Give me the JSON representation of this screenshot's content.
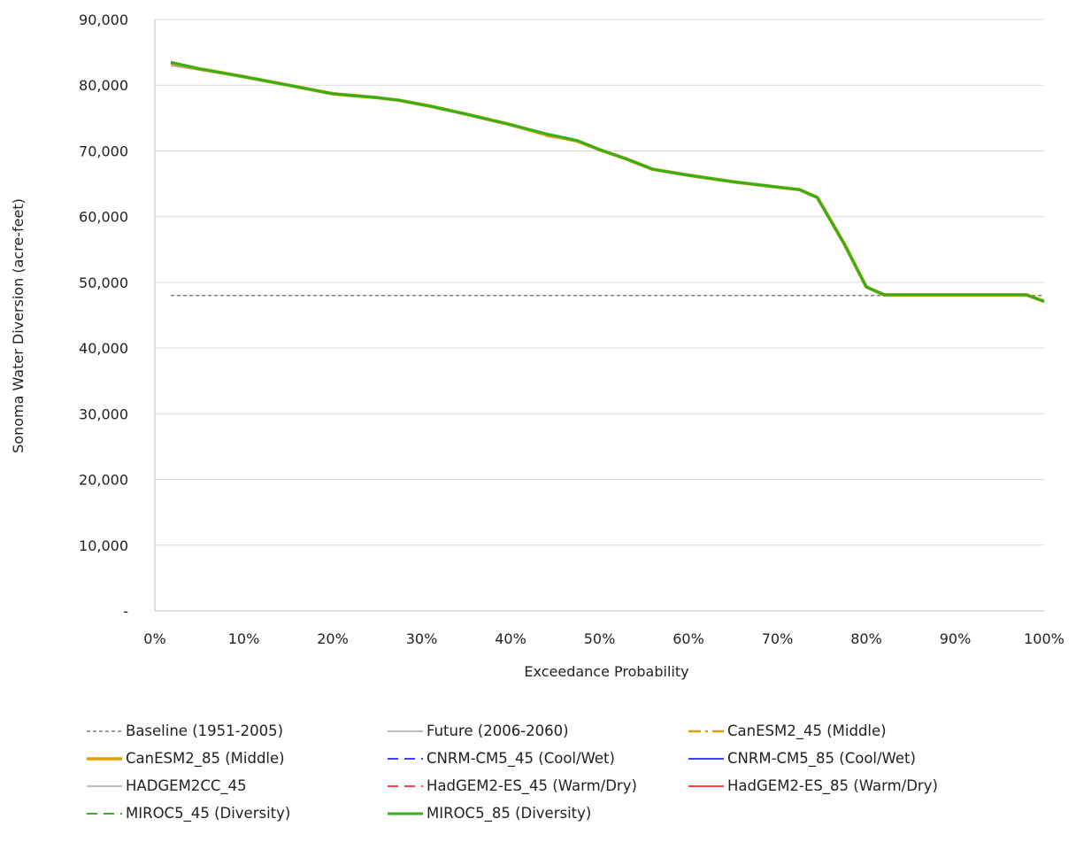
{
  "chart_data": {
    "type": "line",
    "title": "",
    "xlabel": "Exceedance  Probability",
    "ylabel": "Sonoma Water Diversion  (acre-feet)",
    "xlim": [
      0,
      100
    ],
    "ylim": [
      0,
      90000
    ],
    "x_ticks": [
      0,
      10,
      20,
      30,
      40,
      50,
      60,
      70,
      80,
      90,
      100
    ],
    "x_tick_labels": [
      "0%",
      "10%",
      "20%",
      "30%",
      "40%",
      "50%",
      "60%",
      "70%",
      "80%",
      "90%",
      "100%"
    ],
    "y_ticks": [
      0,
      10000,
      20000,
      30000,
      40000,
      50000,
      60000,
      70000,
      80000,
      90000
    ],
    "y_tick_labels": [
      "-",
      "10,000",
      "20,000",
      "30,000",
      "40,000",
      "50,000",
      "60,000",
      "70,000",
      "80,000",
      "90,000"
    ],
    "grid": "horizontal",
    "legend_position": "bottom",
    "x": [
      1.8,
      5,
      10,
      15,
      20,
      25,
      27.5,
      31,
      35,
      40,
      44,
      47.5,
      50,
      53,
      56,
      60,
      65,
      70,
      72.5,
      74.5,
      77.5,
      80,
      82,
      85,
      90,
      95,
      98,
      100
    ],
    "series": [
      {
        "name": "Baseline (1951-2005)",
        "color": "#808080",
        "style": "dashed-small",
        "width": 1.5,
        "values": [
          48000,
          48000,
          48000,
          48000,
          48000,
          48000,
          48000,
          48000,
          48000,
          48000,
          48000,
          48000,
          48000,
          48000,
          48000,
          48000,
          48000,
          48000,
          48000,
          48000,
          48000,
          48000,
          48000,
          48000,
          48000,
          48000,
          48000,
          48000
        ]
      },
      {
        "name": "Future (2006-2060)",
        "color": "#a6a6a6",
        "style": "solid",
        "width": 1.5,
        "values": [
          83000,
          82300,
          81200,
          80000,
          78700,
          78000,
          77700,
          76800,
          75600,
          74000,
          72600,
          71600,
          70200,
          68800,
          67200,
          66300,
          65300,
          64500,
          64100,
          62900,
          55900,
          49300,
          48100,
          48100,
          48100,
          48100,
          48100,
          47100
        ]
      },
      {
        "name": "CanESM2_45 (Middle)",
        "color": "#e0a000",
        "style": "dash-dot",
        "width": 2.5,
        "values": [
          83300,
          82400,
          81200,
          80000,
          78800,
          78100,
          77700,
          76900,
          75600,
          74000,
          72300,
          71500,
          70200,
          68800,
          67200,
          66300,
          65300,
          64500,
          64100,
          62900,
          55900,
          49300,
          48100,
          48100,
          48100,
          48100,
          48100,
          47100
        ]
      },
      {
        "name": "CanESM2_85 (Middle)",
        "color": "#e0a000",
        "style": "solid",
        "width": 4,
        "values": [
          83400,
          82500,
          81300,
          80000,
          78700,
          78100,
          77700,
          76800,
          75600,
          74000,
          72500,
          71500,
          70200,
          68800,
          67200,
          66300,
          65300,
          64500,
          64100,
          62900,
          55900,
          49300,
          48100,
          48100,
          48100,
          48100,
          48100,
          47100
        ]
      },
      {
        "name": "CNRM-CM5_45 (Cool/Wet)",
        "color": "#0000ff",
        "style": "dashed",
        "width": 1.5,
        "values": [
          83400,
          82500,
          81300,
          80000,
          78700,
          78100,
          77700,
          76800,
          75600,
          74000,
          72600,
          71600,
          70200,
          68800,
          67200,
          66300,
          65300,
          64500,
          64100,
          62900,
          55900,
          49300,
          48100,
          48100,
          48100,
          48100,
          48100,
          47100
        ]
      },
      {
        "name": "CNRM-CM5_85 (Cool/Wet)",
        "color": "#0000ff",
        "style": "solid",
        "width": 1.5,
        "values": [
          83400,
          82500,
          81300,
          80000,
          78700,
          78100,
          77700,
          76800,
          75600,
          74000,
          72600,
          71600,
          70200,
          68800,
          67200,
          66300,
          65300,
          64500,
          64100,
          62900,
          55900,
          49300,
          48100,
          48100,
          48100,
          48100,
          48100,
          47100
        ]
      },
      {
        "name": "HADGEM2CC_45",
        "color": "#a6a6a6",
        "style": "solid",
        "width": 1.5,
        "values": [
          83400,
          82500,
          81300,
          80000,
          78700,
          78100,
          77700,
          76800,
          75600,
          74000,
          72600,
          71600,
          70200,
          68800,
          67200,
          66300,
          65300,
          64500,
          64100,
          62900,
          55900,
          49300,
          48100,
          48100,
          48100,
          48100,
          48100,
          47100
        ]
      },
      {
        "name": "HadGEM2-ES_45 (Warm/Dry)",
        "color": "#ff0000",
        "style": "dashed",
        "width": 1.5,
        "values": [
          83400,
          82500,
          81300,
          80000,
          78700,
          78100,
          77700,
          76800,
          75600,
          74000,
          72600,
          71600,
          70200,
          68800,
          67200,
          66300,
          65300,
          64500,
          64100,
          62900,
          55900,
          49300,
          48100,
          48100,
          48100,
          48100,
          48100,
          47100
        ]
      },
      {
        "name": "HadGEM2-ES_85 (Warm/Dry)",
        "color": "#ff0000",
        "style": "solid",
        "width": 1.5,
        "values": [
          83400,
          82500,
          81300,
          80000,
          78700,
          78100,
          77700,
          76800,
          75600,
          74000,
          72600,
          71600,
          70200,
          68800,
          67200,
          66300,
          65300,
          64500,
          64100,
          62900,
          55900,
          49300,
          48100,
          48100,
          48100,
          48100,
          48100,
          47100
        ]
      },
      {
        "name": "MIROC5_45 (Diversity)",
        "color": "#33b01c",
        "style": "dashed",
        "width": 2,
        "values": [
          83400,
          82500,
          81300,
          80000,
          78700,
          78100,
          77700,
          76800,
          75600,
          74000,
          72600,
          71600,
          70200,
          68800,
          67200,
          66300,
          65300,
          64500,
          64100,
          62900,
          55900,
          49300,
          48100,
          48100,
          48100,
          48100,
          48100,
          47100
        ]
      },
      {
        "name": "MIROC5_85 (Diversity)",
        "color": "#33b01c",
        "style": "solid",
        "width": 3,
        "values": [
          83500,
          82500,
          81300,
          80000,
          78700,
          78100,
          77700,
          76800,
          75600,
          74000,
          72600,
          71600,
          70200,
          68800,
          67200,
          66300,
          65300,
          64500,
          64100,
          62900,
          55900,
          49300,
          48100,
          48100,
          48100,
          48100,
          48100,
          47100
        ]
      }
    ]
  }
}
